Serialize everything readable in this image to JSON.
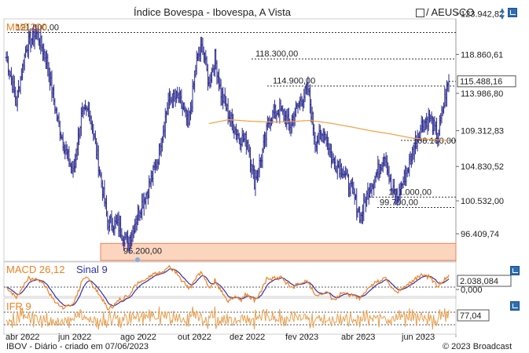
{
  "header": {
    "title": "Índice Bovespa - Ibovespa, A Vista",
    "compare_label": "/ AEUSCO"
  },
  "panels": {
    "price_label": "MME200",
    "macd_label": "MACD 26,12",
    "signal_label": "Sinal 9",
    "rsi_label": "IFR 9"
  },
  "footer": {
    "left": "IBOV - Diário - criado em 07/06/2023",
    "right": "© 2023 Broadcast"
  },
  "colors": {
    "candles": "#2b2b8f",
    "ema": "#f0a040",
    "macd": "#f08020",
    "signal": "#3030b0",
    "rsi": "#e8a050",
    "support_zone": "#fcd5bf",
    "support_border": "#f08050"
  },
  "chart_data": [
    {
      "type": "ohlc",
      "title": "Índice Bovespa - Ibovespa, A Vista",
      "x_axis_labels": [
        "abr 2022",
        "jun 2022",
        "ago 2022",
        "out 2022",
        "dez 2022",
        "fev 2023",
        "abr 2023",
        "jun 2023"
      ],
      "y_ticks": [
        "123.942,82",
        "118.860,61",
        "113.986,80",
        "109.312,83",
        "104.830,52",
        "100.532,00",
        "96.409,74"
      ],
      "y_ticks_values": [
        123942.82,
        118860.61,
        113986.8,
        109312.83,
        104830.52,
        100532.0,
        96409.74
      ],
      "last_price_label": "115.488,16",
      "last_price": 115488.16,
      "anchors": [
        [
          0,
          118500
        ],
        [
          10,
          113000
        ],
        [
          20,
          120000
        ],
        [
          30,
          121600
        ],
        [
          40,
          118000
        ],
        [
          50,
          111000
        ],
        [
          58,
          107000
        ],
        [
          66,
          104000
        ],
        [
          74,
          111000
        ],
        [
          82,
          112000
        ],
        [
          90,
          106000
        ],
        [
          100,
          98000
        ],
        [
          110,
          97500
        ],
        [
          120,
          95200
        ],
        [
          130,
          99000
        ],
        [
          140,
          102000
        ],
        [
          150,
          106000
        ],
        [
          160,
          113000
        ],
        [
          170,
          113500
        ],
        [
          180,
          110000
        ],
        [
          188,
          118000
        ],
        [
          194,
          120000
        ],
        [
          200,
          115000
        ],
        [
          206,
          118500
        ],
        [
          212,
          114000
        ],
        [
          222,
          110500
        ],
        [
          230,
          108500
        ],
        [
          238,
          108000
        ],
        [
          245,
          103000
        ],
        [
          252,
          106000
        ],
        [
          260,
          111000
        ],
        [
          270,
          112000
        ],
        [
          280,
          110000
        ],
        [
          290,
          113000
        ],
        [
          298,
          114500
        ],
        [
          305,
          108000
        ],
        [
          315,
          109000
        ],
        [
          322,
          105500
        ],
        [
          332,
          104500
        ],
        [
          342,
          101500
        ],
        [
          350,
          98500
        ],
        [
          358,
          102000
        ],
        [
          366,
          104000
        ],
        [
          374,
          106500
        ],
        [
          380,
          102000
        ],
        [
          386,
          101000
        ],
        [
          395,
          104000
        ],
        [
          402,
          107000
        ],
        [
          410,
          110000
        ],
        [
          418,
          111000
        ],
        [
          426,
          108500
        ],
        [
          434,
          114000
        ],
        [
          437,
          115488
        ]
      ],
      "ema200_anchors": [
        [
          200,
          110200
        ],
        [
          220,
          110700
        ],
        [
          240,
          110500
        ],
        [
          260,
          110400
        ],
        [
          280,
          110450
        ],
        [
          300,
          110600
        ],
        [
          320,
          110250
        ],
        [
          340,
          109800
        ],
        [
          360,
          109300
        ],
        [
          380,
          108900
        ],
        [
          400,
          108400
        ],
        [
          420,
          108200
        ],
        [
          437,
          108100
        ]
      ],
      "levels": [
        {
          "value": 121600,
          "label": "121.600,00"
        },
        {
          "value": 118300,
          "label": "118.300,00"
        },
        {
          "value": 114900,
          "label": "114.900,00"
        },
        {
          "value": 108100,
          "label": "108.100,00"
        },
        {
          "value": 101000,
          "label": "101.000,00"
        },
        {
          "value": 99700,
          "label": "99.700,00"
        }
      ],
      "support_zone": {
        "value": 95200,
        "label": "95.200,00"
      }
    },
    {
      "type": "line",
      "title": "MACD 26,12",
      "series": [
        {
          "name": "MACD 26,12"
        },
        {
          "name": "Sinal 9"
        }
      ],
      "y_ticks": [
        "2.038,084",
        "0,000"
      ],
      "y_ticks_values": [
        2038.084,
        0
      ],
      "last_value": 2038.084
    },
    {
      "type": "line",
      "title": "IFR 9",
      "y_ticks": [
        "77,04"
      ],
      "last_value": 77.04
    }
  ]
}
